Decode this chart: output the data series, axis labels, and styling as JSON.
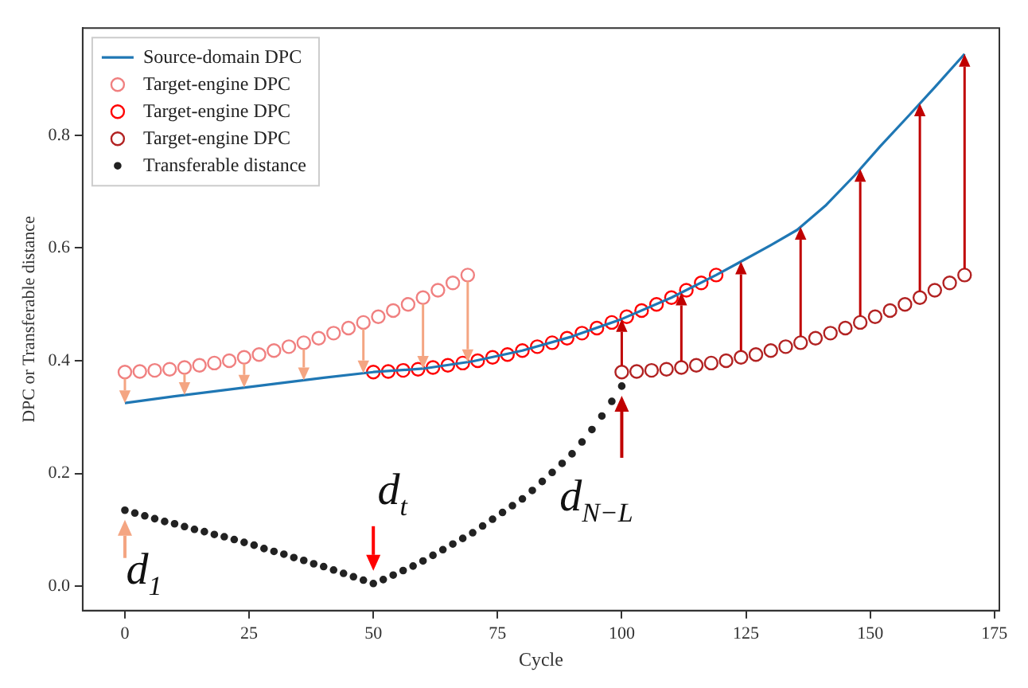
{
  "chart_data": {
    "type": "line",
    "xlabel": "Cycle",
    "ylabel": "DPC or Transferable distance",
    "xlim": [
      -8.5,
      176
    ],
    "ylim": [
      -0.043,
      0.99
    ],
    "xticks": [
      0,
      25,
      50,
      75,
      100,
      125,
      150,
      175
    ],
    "yticks": [
      {
        "value": 0,
        "label": "0.0"
      },
      {
        "value": 0.2,
        "label": "0.2"
      },
      {
        "value": 0.4,
        "label": "0.4"
      },
      {
        "value": 0.6,
        "label": "0.6"
      },
      {
        "value": 0.8,
        "label": "0.8"
      }
    ],
    "grid": false,
    "legend": "top left",
    "series": [
      {
        "name": "Source-domain DPC",
        "marker": "none",
        "color": "#1f77b4",
        "x": [
          0,
          10,
          20,
          30,
          40,
          50,
          60,
          70,
          80,
          90,
          100,
          110,
          119,
          123.4,
          130,
          135.3,
          141,
          146.8,
          152,
          157.8,
          163,
          169
        ],
        "values": [
          0.325,
          0.337,
          0.348,
          0.359,
          0.37,
          0.38,
          0.386,
          0.399,
          0.418,
          0.443,
          0.474,
          0.512,
          0.552,
          0.573,
          0.605,
          0.632,
          0.675,
          0.728,
          0.78,
          0.835,
          0.885,
          0.944
        ]
      },
      {
        "name": "Target-engine DPC",
        "type": "scatter",
        "marker": "circle",
        "color": "#f08080",
        "x": [
          0,
          3,
          6,
          9,
          12,
          15,
          18,
          21,
          24,
          27,
          30,
          33,
          36,
          39,
          42,
          45,
          48,
          51,
          54,
          57,
          60,
          63,
          66,
          69
        ],
        "values": [
          0.38,
          0.381,
          0.383,
          0.385,
          0.388,
          0.392,
          0.396,
          0.4,
          0.406,
          0.411,
          0.418,
          0.425,
          0.432,
          0.44,
          0.449,
          0.458,
          0.468,
          0.478,
          0.489,
          0.5,
          0.512,
          0.525,
          0.538,
          0.552
        ]
      },
      {
        "name": "Target-engine DPC",
        "type": "scatter",
        "marker": "circle",
        "color": "#ff0000",
        "x": [
          50,
          53,
          56,
          59,
          62,
          65,
          68,
          71,
          74,
          77,
          80,
          83,
          86,
          89,
          92,
          95,
          98,
          101,
          104,
          107,
          110,
          113,
          116,
          119
        ],
        "values": [
          0.38,
          0.381,
          0.383,
          0.385,
          0.388,
          0.392,
          0.396,
          0.4,
          0.406,
          0.411,
          0.418,
          0.425,
          0.432,
          0.44,
          0.449,
          0.458,
          0.468,
          0.478,
          0.489,
          0.5,
          0.512,
          0.525,
          0.538,
          0.552
        ]
      },
      {
        "name": "Target-engine DPC",
        "type": "scatter",
        "marker": "circle",
        "color": "#b22222",
        "x": [
          100,
          103,
          106,
          109,
          112,
          115,
          118,
          121,
          124,
          127,
          130,
          133,
          136,
          139,
          142,
          145,
          148,
          151,
          154,
          157,
          160,
          163,
          166,
          169
        ],
        "values": [
          0.38,
          0.381,
          0.383,
          0.385,
          0.388,
          0.392,
          0.396,
          0.4,
          0.406,
          0.411,
          0.418,
          0.425,
          0.432,
          0.44,
          0.449,
          0.458,
          0.468,
          0.478,
          0.489,
          0.5,
          0.512,
          0.525,
          0.538,
          0.552
        ]
      },
      {
        "name": "Transferable distance",
        "type": "scatter",
        "marker": "circle",
        "color": "#222222",
        "x": [
          0,
          2,
          4,
          6,
          8,
          10,
          12,
          14,
          16,
          18,
          20,
          22,
          24,
          26,
          28,
          30,
          32,
          34,
          36,
          38,
          40,
          42,
          44,
          46,
          48,
          50,
          52,
          54,
          56,
          58,
          60,
          62,
          64,
          66,
          68,
          70,
          72,
          74,
          76,
          78,
          80,
          82,
          84,
          86,
          88,
          90,
          92,
          94,
          96,
          98,
          100
        ],
        "values": [
          0.135,
          0.13,
          0.125,
          0.12,
          0.115,
          0.111,
          0.106,
          0.101,
          0.097,
          0.092,
          0.088,
          0.083,
          0.078,
          0.073,
          0.067,
          0.062,
          0.057,
          0.051,
          0.046,
          0.04,
          0.035,
          0.029,
          0.023,
          0.017,
          0.011,
          0.005,
          0.012,
          0.02,
          0.028,
          0.036,
          0.045,
          0.055,
          0.065,
          0.075,
          0.085,
          0.095,
          0.107,
          0.119,
          0.131,
          0.143,
          0.155,
          0.17,
          0.186,
          0.202,
          0.218,
          0.235,
          0.256,
          0.278,
          0.302,
          0.328,
          0.355
        ]
      }
    ],
    "annotations": [
      {
        "text": "d$_{1}$",
        "x": 0,
        "y": 0.135
      },
      {
        "text": "d$_{t}$",
        "x": 50,
        "y": 0.005
      },
      {
        "text": "d$_{N−L}$",
        "x": 100,
        "y": 0.355
      }
    ]
  }
}
